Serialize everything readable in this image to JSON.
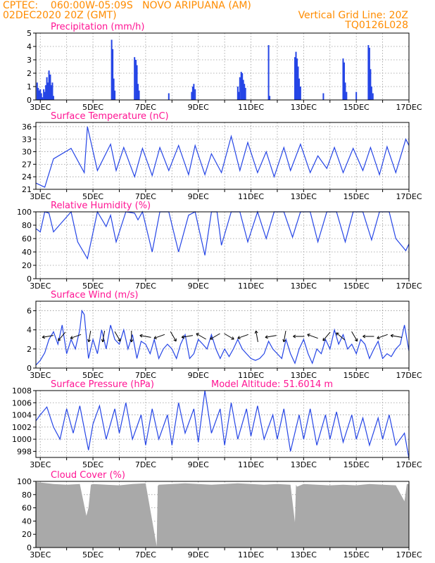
{
  "header": {
    "line1_left": "CPTEC:    060:00W-05:09S   NOVO ARIPUANA (AM)",
    "line2_left": "02DEC2020 20Z (GMT)",
    "line2_right": "Vertical Grid Line: 20Z",
    "line3_right": "TQ0126L028"
  },
  "colors": {
    "header": "#ff8c00",
    "panel_title": "#ff1493",
    "series": "#2545e6",
    "cloud_fill": "#a9a9a9",
    "grid": "#9a9a9a"
  },
  "x_axis": {
    "labels": [
      "3DEC",
      "5DEC",
      "7DEC",
      "9DEC",
      "11DEC",
      "13DEC",
      "15DEC",
      "17DEC"
    ],
    "range_days": [
      2.833,
      17.0
    ]
  },
  "chart_data": [
    {
      "id": "precip",
      "type": "bar",
      "title": "Precipitation  (mm/h)",
      "ylim": [
        0,
        5
      ],
      "yticks": [
        "0",
        "1",
        "2",
        "3",
        "4",
        "5"
      ],
      "grid": true,
      "x": [
        2.88,
        2.92,
        2.96,
        3.0,
        3.04,
        3.08,
        3.13,
        3.17,
        3.21,
        3.25,
        3.29,
        3.33,
        3.38,
        3.42,
        3.46,
        3.5,
        5.71,
        5.75,
        5.79,
        5.83,
        6.58,
        6.63,
        6.67,
        6.71,
        6.75,
        7.88,
        8.75,
        8.79,
        8.83,
        8.88,
        10.5,
        10.54,
        10.58,
        10.63,
        10.67,
        10.71,
        10.75,
        10.79,
        11.67,
        11.71,
        12.67,
        12.71,
        12.75,
        12.79,
        12.83,
        12.88,
        13.75,
        14.5,
        14.54,
        14.58,
        14.63,
        15.0,
        15.46,
        15.5,
        15.54,
        15.58,
        15.63
      ],
      "values": [
        1.3,
        0.9,
        0.7,
        0.8,
        0.5,
        0.2,
        0.8,
        0.6,
        1.1,
        1.7,
        1.3,
        2.2,
        1.9,
        1.1,
        1.3,
        0.3,
        4.5,
        3.8,
        1.6,
        0.7,
        3.2,
        3.0,
        2.6,
        1.2,
        0.7,
        0.5,
        0.6,
        1.0,
        1.2,
        0.8,
        1.0,
        0.6,
        1.7,
        2.1,
        2.0,
        1.5,
        1.2,
        0.9,
        4.1,
        0.3,
        3.2,
        3.6,
        3.1,
        2.5,
        1.6,
        1.0,
        0.5,
        3.1,
        2.8,
        1.3,
        0.6,
        0.6,
        4.1,
        3.9,
        2.3,
        1.0,
        0.5
      ]
    },
    {
      "id": "temp",
      "type": "line",
      "title": "Surface Temperature  (nC)",
      "ylim": [
        21,
        37
      ],
      "yticks": [
        "21",
        "24",
        "27",
        "30",
        "33",
        "36"
      ],
      "grid": true,
      "x": [
        2.83,
        3.17,
        3.5,
        4.17,
        4.67,
        4.79,
        5.17,
        5.67,
        5.88,
        6.17,
        6.58,
        6.88,
        7.25,
        7.54,
        7.88,
        8.25,
        8.63,
        8.88,
        9.25,
        9.5,
        9.88,
        10.25,
        10.58,
        10.88,
        11.25,
        11.58,
        11.88,
        12.25,
        12.5,
        12.88,
        13.25,
        13.54,
        13.88,
        14.17,
        14.5,
        14.88,
        15.25,
        15.54,
        15.88,
        16.17,
        16.5,
        16.88,
        17.0
      ],
      "values": [
        22.5,
        21.5,
        28.3,
        30.8,
        25.0,
        36.0,
        25.5,
        31.8,
        25.5,
        31.0,
        24.0,
        30.8,
        24.3,
        31.0,
        25.5,
        31.5,
        24.5,
        31.5,
        24.5,
        29.5,
        25.0,
        33.7,
        25.5,
        32.2,
        25.0,
        30.0,
        24.0,
        31.0,
        25.5,
        31.8,
        25.0,
        29.0,
        26.0,
        31.0,
        25.0,
        30.8,
        25.5,
        31.0,
        24.5,
        31.2,
        25.0,
        33.0,
        31.5
      ]
    },
    {
      "id": "rh",
      "type": "line",
      "title": "Relative Humidity  (%)",
      "ylim": [
        0,
        100
      ],
      "yticks": [
        "0",
        "20",
        "40",
        "60",
        "80",
        "100"
      ],
      "grid": true,
      "x": [
        2.83,
        3.0,
        3.17,
        3.33,
        3.5,
        4.17,
        4.42,
        4.79,
        5.17,
        5.5,
        5.67,
        5.88,
        6.25,
        6.58,
        6.71,
        6.88,
        7.25,
        7.54,
        7.88,
        8.25,
        8.63,
        8.88,
        9.25,
        9.5,
        9.71,
        9.88,
        10.25,
        10.58,
        10.88,
        11.25,
        11.58,
        11.88,
        12.25,
        12.58,
        12.88,
        13.25,
        13.54,
        13.88,
        14.25,
        14.58,
        14.88,
        15.25,
        15.58,
        15.88,
        16.25,
        16.5,
        16.88,
        17.0
      ],
      "values": [
        75,
        70,
        100,
        98,
        70,
        100,
        55,
        30,
        100,
        78,
        95,
        55,
        100,
        98,
        88,
        100,
        40,
        100,
        100,
        40,
        95,
        100,
        35,
        100,
        100,
        50,
        100,
        100,
        55,
        100,
        60,
        100,
        100,
        62,
        100,
        100,
        55,
        100,
        100,
        55,
        100,
        100,
        58,
        100,
        100,
        60,
        42,
        52
      ]
    },
    {
      "id": "wind",
      "type": "line",
      "title": "Surface Wind  (m/s)",
      "ylim": [
        0,
        7
      ],
      "yticks": [
        "0",
        "2",
        "4",
        "6"
      ],
      "grid": true,
      "x": [
        2.83,
        3.0,
        3.17,
        3.33,
        3.5,
        3.67,
        3.83,
        4.0,
        4.17,
        4.33,
        4.5,
        4.58,
        4.67,
        4.83,
        5.0,
        5.17,
        5.33,
        5.5,
        5.67,
        5.83,
        6.0,
        6.17,
        6.33,
        6.5,
        6.67,
        6.83,
        7.0,
        7.17,
        7.33,
        7.5,
        7.67,
        7.83,
        8.0,
        8.17,
        8.33,
        8.5,
        8.67,
        8.83,
        9.0,
        9.17,
        9.33,
        9.5,
        9.67,
        9.83,
        10.0,
        10.17,
        10.33,
        10.5,
        10.67,
        10.83,
        11.0,
        11.17,
        11.33,
        11.5,
        11.67,
        11.83,
        12.0,
        12.17,
        12.33,
        12.5,
        12.67,
        12.83,
        13.0,
        13.17,
        13.33,
        13.5,
        13.67,
        13.83,
        14.0,
        14.17,
        14.33,
        14.5,
        14.67,
        14.83,
        15.0,
        15.17,
        15.33,
        15.5,
        15.67,
        15.83,
        16.0,
        16.17,
        16.33,
        16.5,
        16.67,
        16.83,
        17.0
      ],
      "values": [
        0.3,
        0.8,
        1.6,
        3.0,
        3.8,
        2.5,
        4.5,
        1.5,
        3.0,
        2.0,
        4.0,
        6.0,
        5.6,
        1.0,
        3.0,
        1.5,
        4.0,
        2.0,
        4.5,
        3.0,
        2.5,
        4.0,
        2.0,
        3.5,
        1.0,
        2.8,
        2.5,
        1.5,
        3.0,
        1.0,
        2.0,
        2.5,
        2.0,
        1.0,
        2.5,
        3.5,
        1.0,
        1.5,
        3.0,
        2.5,
        2.0,
        3.5,
        2.0,
        1.0,
        2.0,
        1.2,
        2.0,
        3.0,
        2.0,
        1.5,
        1.0,
        0.8,
        1.0,
        1.5,
        2.8,
        2.0,
        1.5,
        1.0,
        3.0,
        1.5,
        0.5,
        2.0,
        3.0,
        1.5,
        0.5,
        2.0,
        1.5,
        3.0,
        2.0,
        4.0,
        2.5,
        3.5,
        2.0,
        2.5,
        1.5,
        3.0,
        2.5,
        1.0,
        2.0,
        2.8,
        1.0,
        1.5,
        1.2,
        2.0,
        2.5,
        4.5,
        1.8
      ]
    },
    {
      "id": "pressure",
      "type": "line",
      "title": "Surface Pressure  (hPa)",
      "annotation": "Model Altitude: 51.6014  m",
      "ylim": [
        997,
        1008
      ],
      "yticks": [
        "998",
        "1000",
        "1002",
        "1004",
        "1006",
        "1008"
      ],
      "grid": true,
      "x": [
        2.83,
        3.0,
        3.25,
        3.5,
        3.75,
        4.0,
        4.25,
        4.5,
        4.83,
        5.0,
        5.25,
        5.5,
        5.83,
        6.0,
        6.25,
        6.5,
        6.83,
        7.0,
        7.25,
        7.5,
        7.83,
        8.0,
        8.25,
        8.5,
        8.83,
        9.0,
        9.25,
        9.5,
        9.83,
        10.0,
        10.25,
        10.5,
        10.83,
        11.0,
        11.25,
        11.5,
        11.83,
        12.0,
        12.25,
        12.5,
        12.83,
        13.0,
        13.25,
        13.5,
        13.83,
        14.0,
        14.25,
        14.5,
        14.83,
        15.0,
        15.25,
        15.5,
        15.83,
        16.0,
        16.25,
        16.5,
        16.83,
        17.0
      ],
      "values": [
        1003.0,
        1004.0,
        1005.3,
        1002.0,
        1000.0,
        1005.0,
        1001.0,
        1005.5,
        998.2,
        1002.5,
        1005.5,
        1000.0,
        1005.0,
        1001.0,
        1006.0,
        1000.0,
        1004.0,
        999.0,
        1005.0,
        1000.0,
        1004.0,
        999.0,
        1006.0,
        1001.0,
        1005.0,
        999.5,
        1008.0,
        1001.0,
        1005.0,
        999.0,
        1006.0,
        1000.0,
        1005.0,
        1000.5,
        1005.5,
        1000.0,
        1004.0,
        1000.0,
        1005.0,
        998.0,
        1004.0,
        1000.0,
        1005.0,
        999.0,
        1004.0,
        1000.0,
        1004.5,
        999.5,
        1004.0,
        1000.0,
        1003.5,
        999.0,
        1003.5,
        1000.0,
        1004.0,
        999.0,
        1001.0,
        996.8
      ]
    },
    {
      "id": "cloud",
      "type": "area",
      "title": "Cloud Cover  (%)",
      "ylim": [
        0,
        100
      ],
      "yticks": [
        "0",
        "20",
        "40",
        "60",
        "80",
        "100"
      ],
      "grid": true,
      "x": [
        2.83,
        3.5,
        4.0,
        4.5,
        4.75,
        4.83,
        4.92,
        5.0,
        5.5,
        6.0,
        6.5,
        7.0,
        7.42,
        7.46,
        7.5,
        8.0,
        8.5,
        9.0,
        9.5,
        10.0,
        10.5,
        11.0,
        11.5,
        12.0,
        12.5,
        12.67,
        12.71,
        12.75,
        13.0,
        13.5,
        14.0,
        14.5,
        15.0,
        15.5,
        16.0,
        16.5,
        16.83,
        16.92,
        17.0
      ],
      "values": [
        99,
        96,
        95,
        96,
        48,
        60,
        95,
        96,
        95,
        94,
        96,
        97,
        2,
        93,
        95,
        96,
        97,
        96,
        95,
        96,
        97,
        96,
        95,
        96,
        95,
        38,
        95,
        92,
        96,
        95,
        94,
        95,
        94,
        96,
        95,
        94,
        70,
        96,
        96
      ]
    }
  ]
}
